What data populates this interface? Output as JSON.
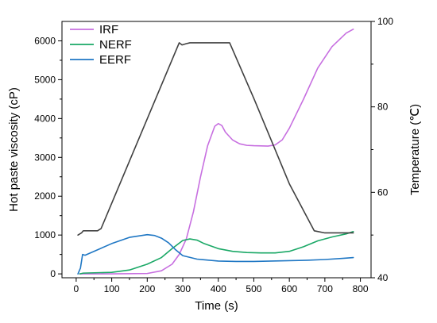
{
  "chart_data": {
    "type": "line",
    "title": "",
    "xlabel": "Time (s)",
    "ylabel_left": "Hot paste viscosity (cP)",
    "ylabel_right": "Temperature (℃)",
    "xlim": [
      -40,
      830
    ],
    "ylim_left": [
      -100,
      6500
    ],
    "ylim_right": [
      40,
      100
    ],
    "x_ticks": [
      0,
      100,
      200,
      300,
      400,
      500,
      600,
      700,
      800
    ],
    "y_left_ticks": [
      0,
      1000,
      2000,
      3000,
      4000,
      5000,
      6000
    ],
    "y_right_ticks": [
      40,
      60,
      80,
      100
    ],
    "grid": false,
    "legend_position": "top-left",
    "series": [
      {
        "name": "IRF",
        "axis": "left",
        "color": "#c76fe0",
        "x": [
          10,
          100,
          200,
          240,
          270,
          290,
          310,
          330,
          350,
          370,
          390,
          400,
          410,
          420,
          440,
          460,
          480,
          500,
          540,
          560,
          580,
          600,
          640,
          680,
          720,
          760,
          780
        ],
        "y": [
          0,
          0,
          10,
          80,
          250,
          500,
          900,
          1600,
          2500,
          3300,
          3800,
          3870,
          3820,
          3650,
          3450,
          3350,
          3310,
          3300,
          3290,
          3320,
          3450,
          3750,
          4500,
          5300,
          5850,
          6200,
          6300
        ]
      },
      {
        "name": "NERF",
        "axis": "left",
        "color": "#1aa866",
        "x": [
          10,
          20,
          100,
          150,
          200,
          240,
          270,
          300,
          320,
          340,
          360,
          400,
          440,
          480,
          520,
          560,
          600,
          640,
          680,
          720,
          760,
          780
        ],
        "y": [
          0,
          20,
          40,
          100,
          250,
          420,
          650,
          860,
          900,
          870,
          780,
          650,
          580,
          550,
          540,
          540,
          580,
          700,
          850,
          950,
          1030,
          1090
        ]
      },
      {
        "name": "EERF",
        "axis": "left",
        "color": "#1f77c4",
        "x": [
          5,
          12,
          18,
          25,
          50,
          100,
          150,
          200,
          220,
          240,
          260,
          280,
          300,
          340,
          400,
          450,
          500,
          550,
          600,
          650,
          700,
          750,
          780
        ],
        "y": [
          0,
          150,
          500,
          480,
          580,
          780,
          940,
          1010,
          990,
          920,
          800,
          620,
          470,
          380,
          330,
          320,
          320,
          330,
          340,
          350,
          370,
          400,
          420
        ]
      },
      {
        "name": "",
        "axis": "right",
        "color": "#404040",
        "x": [
          5,
          15,
          20,
          60,
          70,
          290,
          298,
          310,
          320,
          420,
          432,
          500,
          600,
          670,
          700,
          780
        ],
        "y": [
          50,
          50.5,
          51,
          51,
          51.5,
          95,
          94.5,
          94.8,
          95,
          95,
          95,
          82,
          62,
          51,
          50.5,
          50.5
        ]
      }
    ]
  }
}
